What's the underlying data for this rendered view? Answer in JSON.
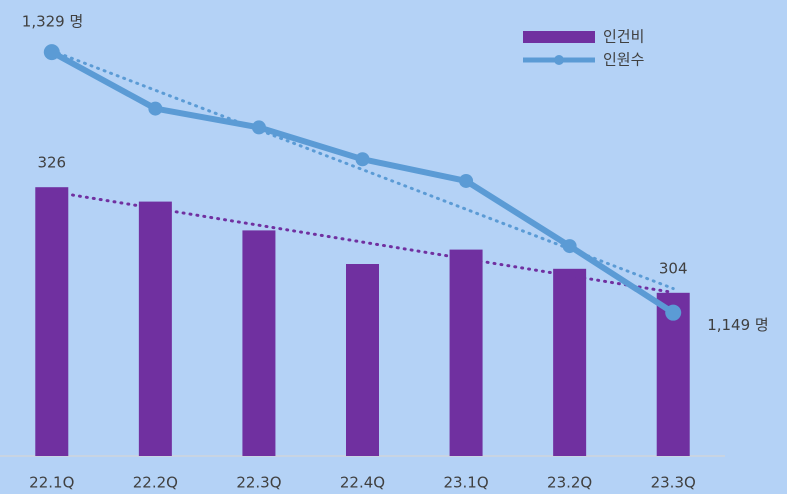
{
  "chart_data": {
    "type": "bar_line",
    "categories": [
      "22.1Q",
      "22.2Q",
      "22.3Q",
      "22.4Q",
      "23.1Q",
      "23.2Q",
      "23.3Q"
    ],
    "series": [
      {
        "name": "인건비",
        "type": "bar",
        "color": "#7030a0",
        "values": [
          326,
          323,
          317,
          310,
          313,
          309,
          304
        ],
        "value_labels": [
          "326",
          null,
          null,
          null,
          null,
          null,
          "304"
        ]
      },
      {
        "name": "인원수",
        "type": "line",
        "axis": "y2",
        "color": "#5b9bd5",
        "values": [
          1329,
          1290,
          1277,
          1255,
          1240,
          1195,
          1149
        ],
        "value_labels": [
          "1,329 명",
          null,
          null,
          null,
          null,
          null,
          "1,149 명"
        ]
      }
    ],
    "ylim": [
      270,
      365
    ],
    "y2lim": [
      1050,
      1365
    ],
    "trendline": true,
    "legend": "top-right"
  }
}
